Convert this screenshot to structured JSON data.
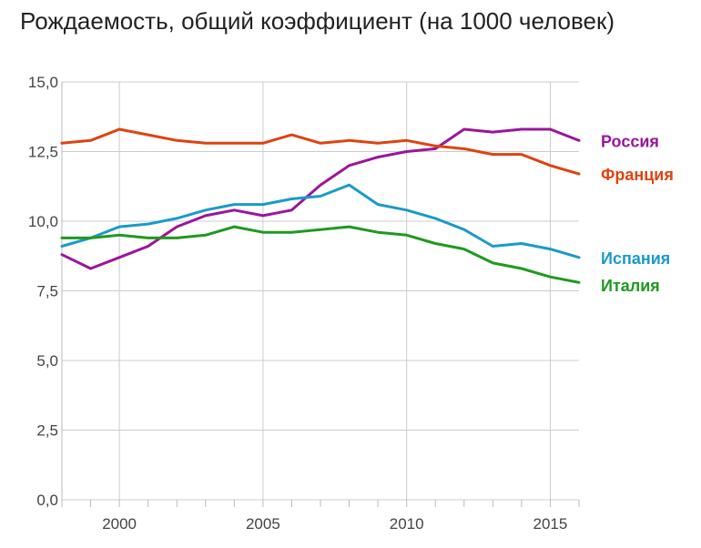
{
  "chart_data": {
    "type": "line",
    "title": "Рождаемость, общий коэффициент (на 1000 человек)",
    "xlabel": "",
    "ylabel": "",
    "xlim": [
      1998,
      2016
    ],
    "ylim": [
      0,
      15
    ],
    "grid": true,
    "x_ticks": [
      "2000",
      "2005",
      "2010",
      "2015"
    ],
    "y_ticks": [
      "0,0",
      "2,5",
      "5,0",
      "7,5",
      "10,0",
      "12,5",
      "15,0"
    ],
    "x": [
      1998,
      1999,
      2000,
      2001,
      2002,
      2003,
      2004,
      2005,
      2006,
      2007,
      2008,
      2009,
      2010,
      2011,
      2012,
      2013,
      2014,
      2015,
      2016
    ],
    "series": [
      {
        "name": "Россия",
        "color": "#9b159b",
        "values": [
          8.8,
          8.3,
          8.7,
          9.1,
          9.8,
          10.2,
          10.4,
          10.2,
          10.4,
          11.3,
          12.0,
          12.3,
          12.5,
          12.6,
          13.3,
          13.2,
          13.3,
          13.3,
          12.9
        ]
      },
      {
        "name": "Франция",
        "color": "#dd4411",
        "values": [
          12.8,
          12.9,
          13.3,
          13.1,
          12.9,
          12.8,
          12.8,
          12.8,
          13.1,
          12.8,
          12.9,
          12.8,
          12.9,
          12.7,
          12.6,
          12.4,
          12.4,
          12.0,
          11.7
        ]
      },
      {
        "name": "Испания",
        "color": "#1a9bc8",
        "values": [
          9.1,
          9.4,
          9.8,
          9.9,
          10.1,
          10.4,
          10.6,
          10.6,
          10.8,
          10.9,
          11.3,
          10.6,
          10.4,
          10.1,
          9.7,
          9.1,
          9.2,
          9.0,
          8.7
        ]
      },
      {
        "name": "Италия",
        "color": "#1f9a1f",
        "values": [
          9.4,
          9.4,
          9.5,
          9.4,
          9.4,
          9.5,
          9.8,
          9.6,
          9.6,
          9.7,
          9.8,
          9.6,
          9.5,
          9.2,
          9.0,
          8.5,
          8.3,
          8.0,
          7.8
        ]
      }
    ]
  }
}
